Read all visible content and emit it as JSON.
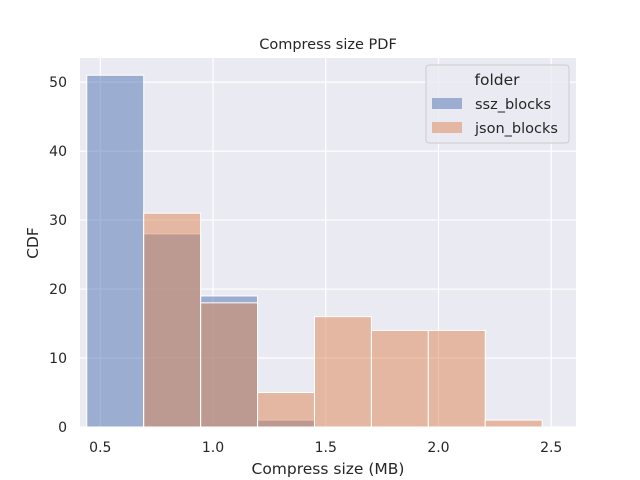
{
  "chart_data": {
    "type": "bar",
    "title": "Compress size PDF",
    "xlabel": "Compress size (MB)",
    "ylabel": "CDF",
    "xlim": [
      0.41,
      2.61
    ],
    "ylim": [
      0,
      53.5
    ],
    "xticks": [
      0.5,
      1.0,
      1.5,
      2.0,
      2.5
    ],
    "xtick_labels": [
      "0.5",
      "1.0",
      "1.5",
      "2.0",
      "2.5"
    ],
    "yticks": [
      0,
      10,
      20,
      30,
      40,
      50
    ],
    "ytick_labels": [
      "0",
      "10",
      "20",
      "30",
      "40",
      "50"
    ],
    "grid": true,
    "legend": {
      "title": "folder",
      "placement": "top-right"
    },
    "bin_edges": [
      0.44,
      0.6925,
      0.945,
      1.1975,
      1.45,
      1.7025,
      1.955,
      2.2075,
      2.46
    ],
    "series": [
      {
        "name": "ssz_blocks",
        "color": "#4c72b0",
        "counts": [
          51,
          28,
          19,
          1,
          0,
          0,
          0,
          0
        ]
      },
      {
        "name": "json_blocks",
        "color": "#dd8452",
        "counts": [
          0,
          31,
          18,
          5,
          16,
          14,
          14,
          1
        ]
      }
    ]
  }
}
